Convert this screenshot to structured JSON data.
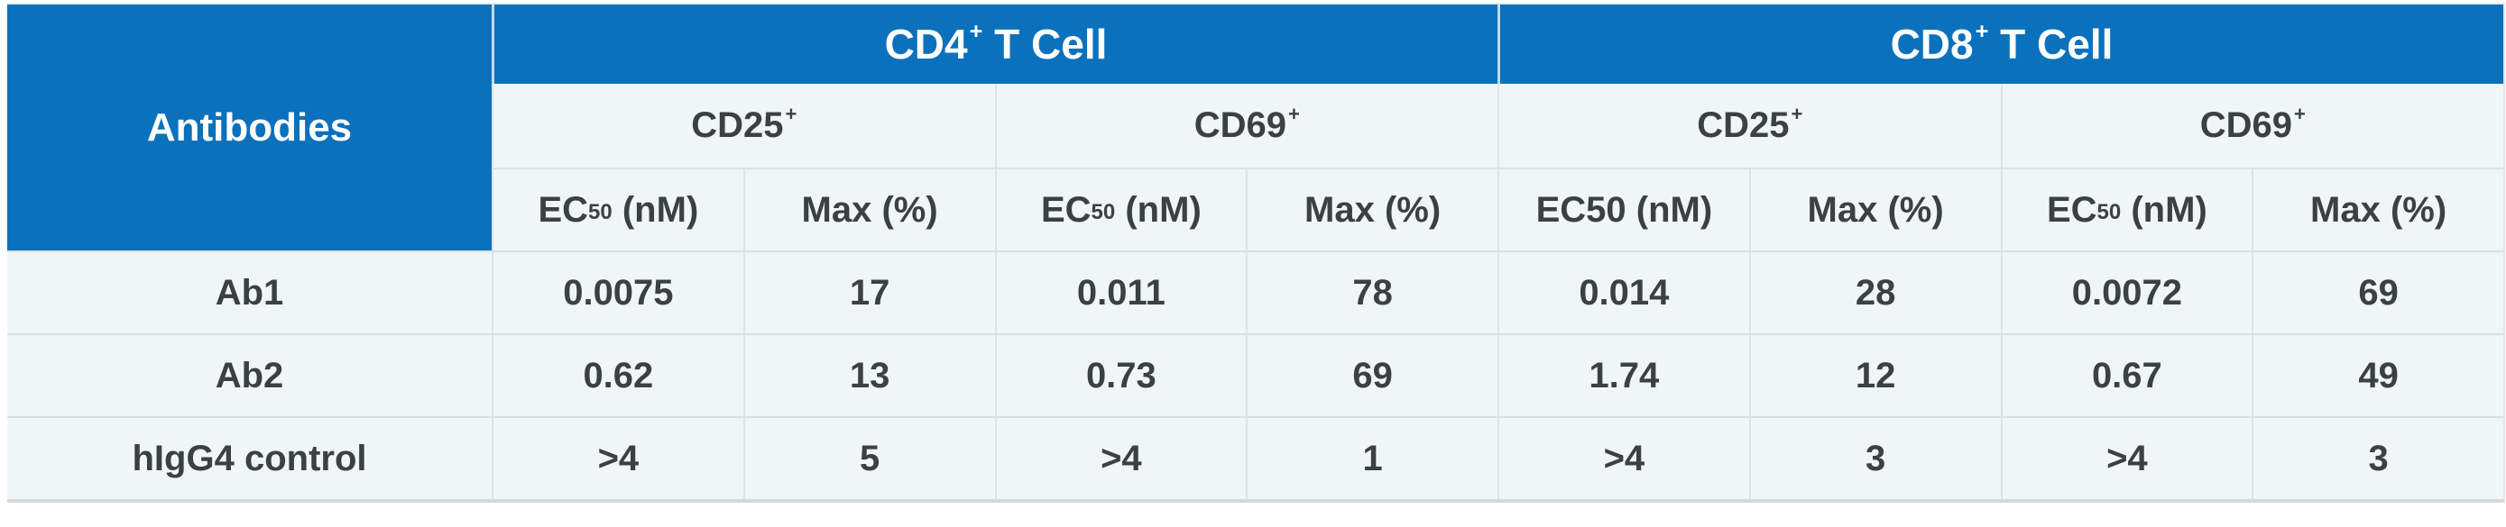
{
  "colors": {
    "header_blue": "#0b71bc",
    "cell_background": "#eef6f8",
    "header_text": "#ffffff",
    "body_text": "#3c4043",
    "row_border": "#dadfe2",
    "column_border": "#dee3e6"
  },
  "table": {
    "corner_header": "Antibodies",
    "cell_groups": [
      {
        "name": "CD4",
        "sup": "+",
        "rest": " T Cell"
      },
      {
        "name": "CD8",
        "sup": "+",
        "rest": " T Cell"
      }
    ],
    "marker_groups": [
      {
        "name": "CD25",
        "sup": "+"
      },
      {
        "name": "CD69",
        "sup": "+"
      },
      {
        "name": "CD25",
        "sup": "+"
      },
      {
        "name": "CD69",
        "sup": "+"
      }
    ],
    "metric_headers": [
      {
        "pre": "EC",
        "sub": "50",
        "post": " (nM)"
      },
      {
        "pre": "Max (%)",
        "sub": "",
        "post": ""
      },
      {
        "pre": "EC",
        "sub": "50",
        "post": " (nM)"
      },
      {
        "pre": "Max (%)",
        "sub": "",
        "post": ""
      },
      {
        "pre": "EC50 (nM)",
        "sub": "",
        "post": ""
      },
      {
        "pre": "Max (%)",
        "sub": "",
        "post": ""
      },
      {
        "pre": "EC",
        "sub": "50",
        "post": " (nM)"
      },
      {
        "pre": "Max (%)",
        "sub": "",
        "post": ""
      }
    ],
    "rows": [
      {
        "label": "Ab1",
        "values": [
          "0.0075",
          "17",
          "0.011",
          "78",
          "0.014",
          "28",
          "0.0072",
          "69"
        ]
      },
      {
        "label": "Ab2",
        "values": [
          "0.62",
          "13",
          "0.73",
          "69",
          "1.74",
          "12",
          "0.67",
          "49"
        ]
      },
      {
        "label": "hIgG4 control",
        "values": [
          ">4",
          "5",
          ">4",
          "1",
          ">4",
          "3",
          ">4",
          "3"
        ]
      }
    ]
  },
  "chart_data": {
    "type": "table",
    "title": "",
    "column_groups": [
      "CD4+ T Cell",
      "CD8+ T Cell"
    ],
    "columns": [
      "Antibodies",
      "CD4+ T Cell / CD25+ / EC50 (nM)",
      "CD4+ T Cell / CD25+ / Max (%)",
      "CD4+ T Cell / CD69+ / EC50 (nM)",
      "CD4+ T Cell / CD69+ / Max (%)",
      "CD8+ T Cell / CD25+ / EC50 (nM)",
      "CD8+ T Cell / CD25+ / Max (%)",
      "CD8+ T Cell / CD69+ / EC50 (nM)",
      "CD8+ T Cell / CD69+ / Max (%)"
    ],
    "rows": [
      [
        "Ab1",
        "0.0075",
        "17",
        "0.011",
        "78",
        "0.014",
        "28",
        "0.0072",
        "69"
      ],
      [
        "Ab2",
        "0.62",
        "13",
        "0.73",
        "69",
        "1.74",
        "12",
        "0.67",
        "49"
      ],
      [
        "hIgG4 control",
        ">4",
        "5",
        ">4",
        "1",
        ">4",
        "3",
        ">4",
        "3"
      ]
    ]
  }
}
